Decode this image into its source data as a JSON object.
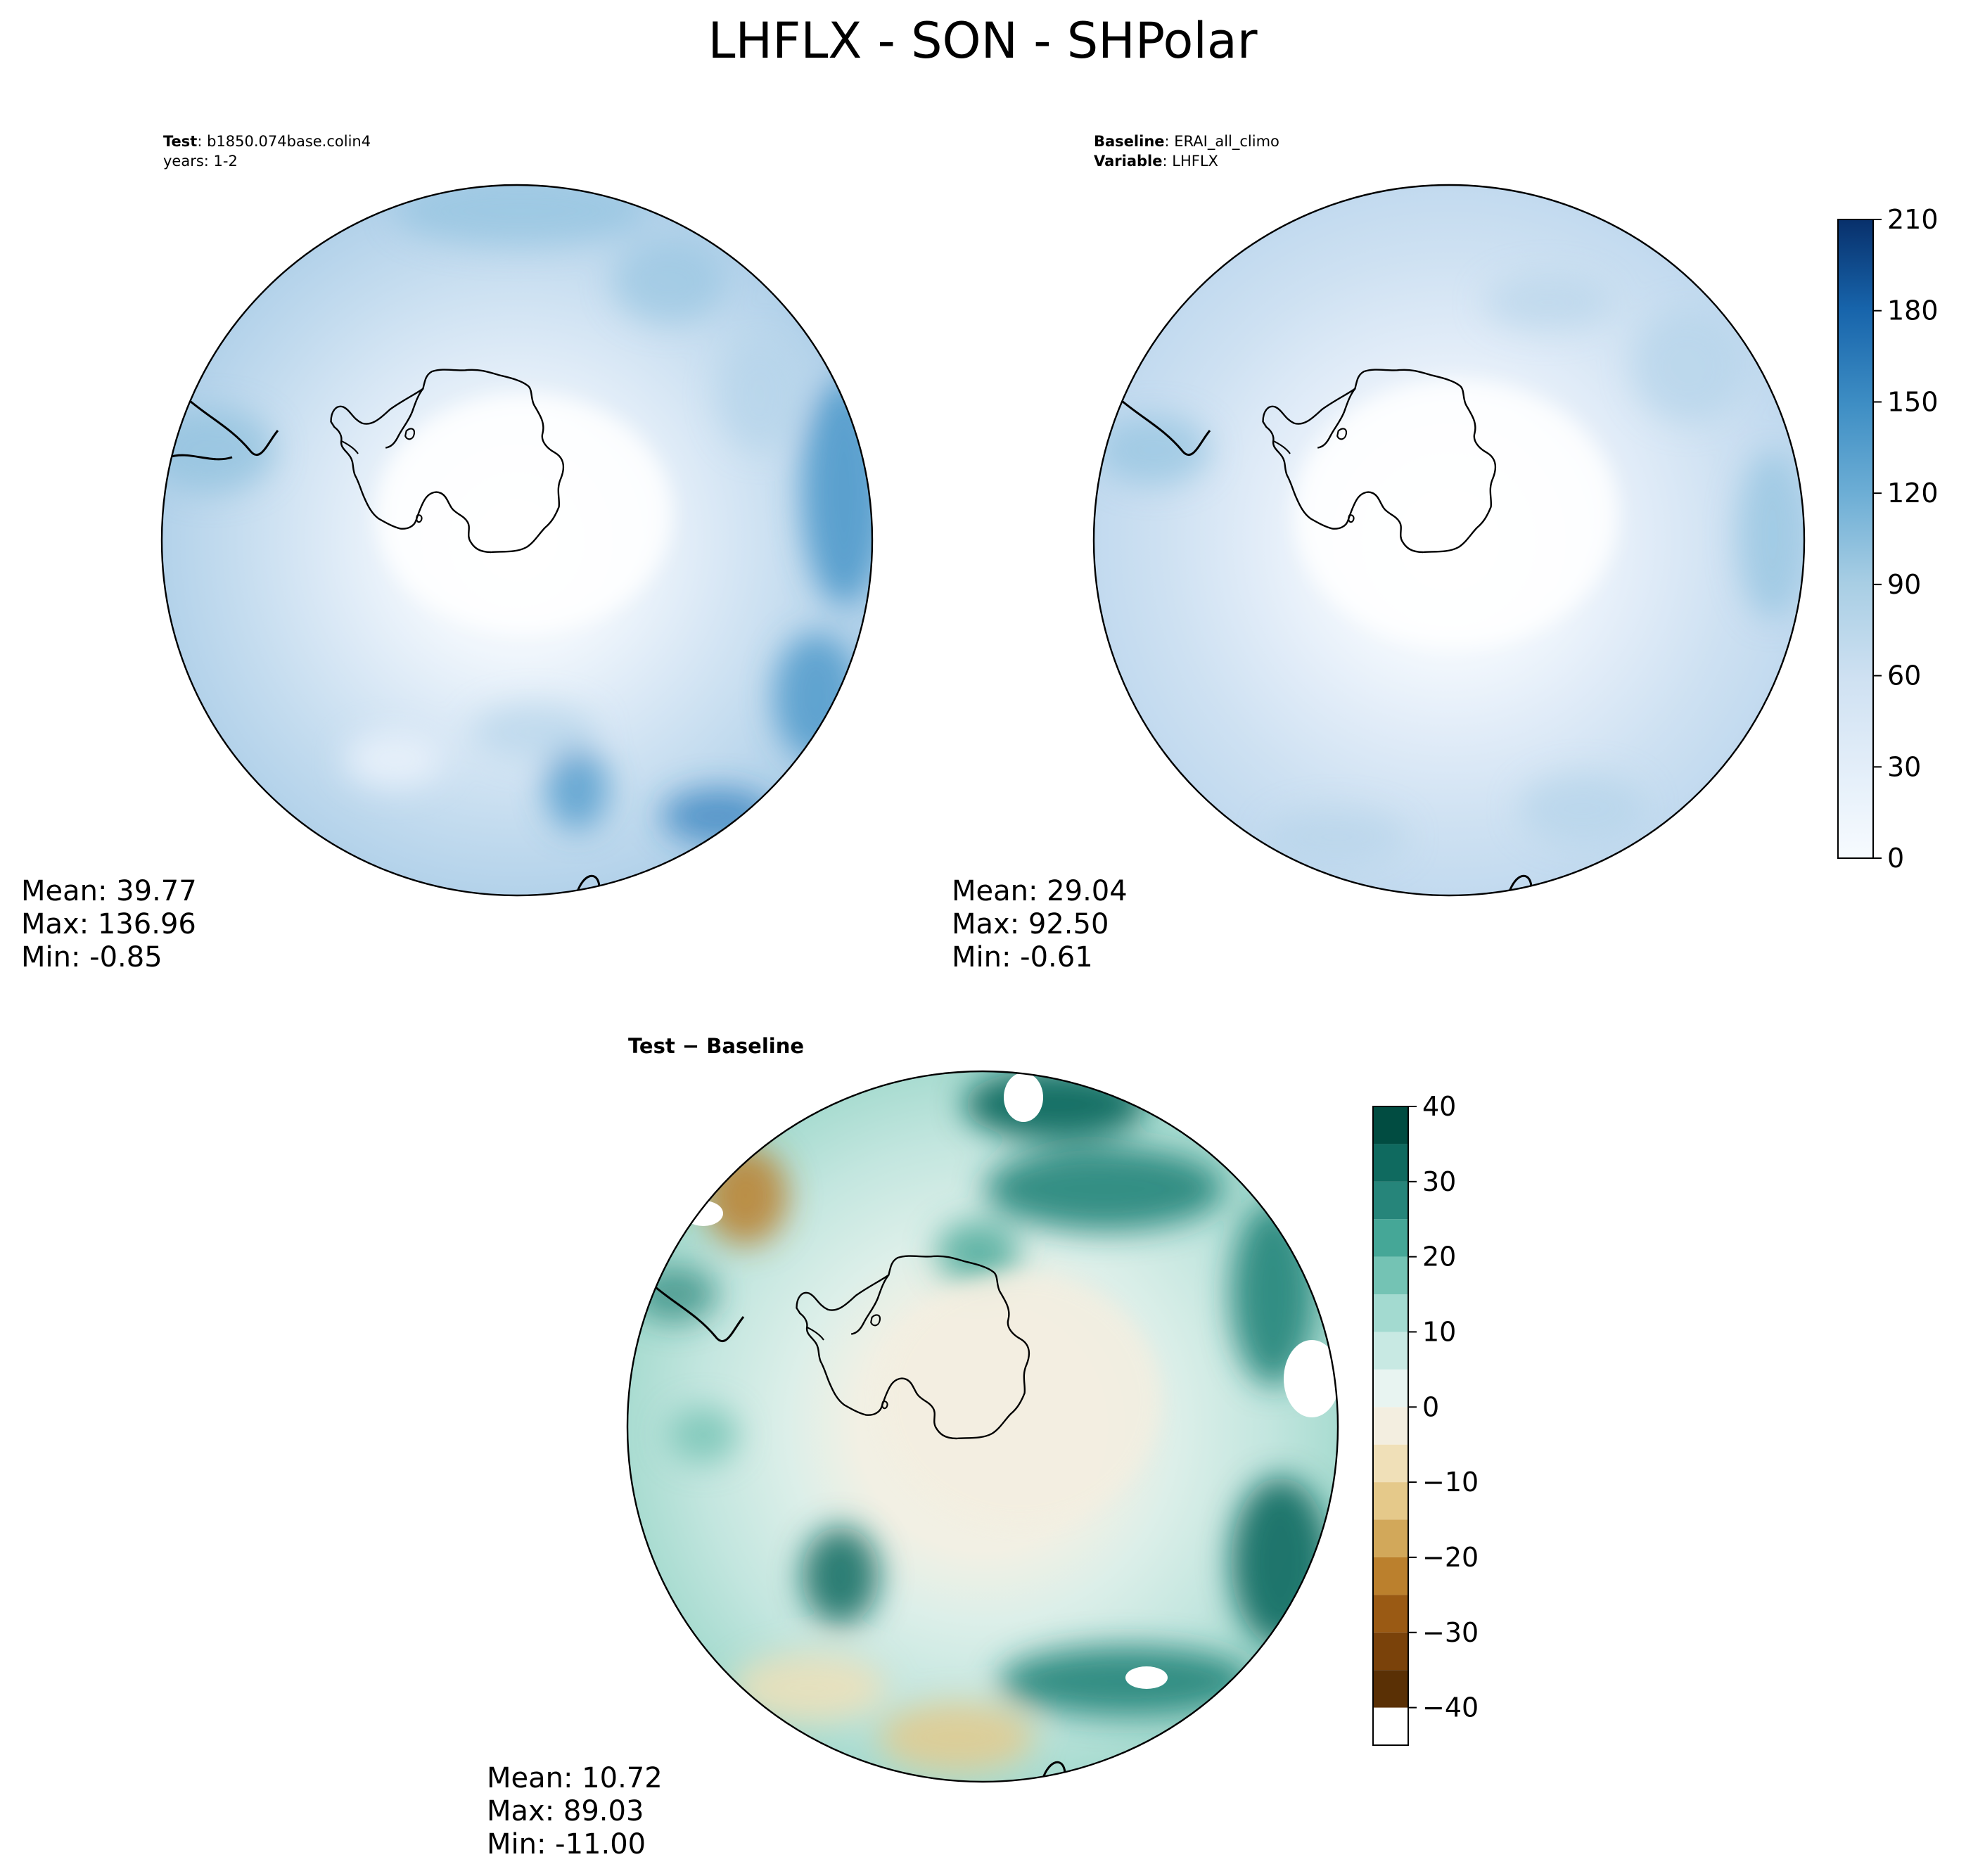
{
  "page_title": "LHFLX - SON - SHPolar",
  "panels": {
    "test": {
      "label_key": "Test",
      "label_value": "b1850.074base.colin4",
      "sub_label": "years: 1-2",
      "stats": {
        "mean": "Mean: 39.77",
        "max": "Max: 136.96",
        "min": "Min: -0.85"
      }
    },
    "baseline": {
      "label_key": "Baseline",
      "label_value": "ERAI_all_climo",
      "label2_key": "Variable",
      "label2_value": "LHFLX",
      "stats": {
        "mean": "Mean: 29.04",
        "max": "Max: 92.50",
        "min": "Min: -0.61"
      }
    },
    "diff": {
      "title": "Test − Baseline",
      "stats": {
        "mean": "Mean: 10.72",
        "max": "Max: 89.03",
        "min": "Min: -11.00"
      }
    }
  },
  "chart_data": [
    {
      "type": "heatmap",
      "panel": "test",
      "projection": "south polar stereographic",
      "region": "SHPolar",
      "variable": "LHFLX",
      "season": "SON",
      "mean": 39.77,
      "max": 136.96,
      "min": -0.85
    },
    {
      "type": "heatmap",
      "panel": "baseline",
      "projection": "south polar stereographic",
      "region": "SHPolar",
      "variable": "LHFLX",
      "season": "SON",
      "mean": 29.04,
      "max": 92.5,
      "min": -0.61,
      "colorbar": {
        "colormap": "Blues",
        "range": [
          0,
          210
        ],
        "ticks": [
          0,
          30,
          60,
          90,
          120,
          150,
          180,
          210
        ],
        "tick_labels": [
          "0",
          "30",
          "60",
          "90",
          "120",
          "150",
          "180",
          "210"
        ]
      }
    },
    {
      "type": "heatmap",
      "panel": "diff",
      "projection": "south polar stereographic",
      "region": "SHPolar",
      "mean": 10.72,
      "max": 89.03,
      "min": -11.0,
      "colorbar": {
        "colormap": "BrBG",
        "range": [
          -45,
          40
        ],
        "ticks": [
          -40,
          -30,
          -20,
          -10,
          0,
          10,
          20,
          30,
          40
        ],
        "tick_labels": [
          "−40",
          "−30",
          "−20",
          "−10",
          "0",
          "10",
          "20",
          "30",
          "40"
        ]
      }
    }
  ],
  "colors": {
    "blues": [
      "#f7fbff",
      "#e3eef9",
      "#cfe1f2",
      "#b5d4e9",
      "#93c3df",
      "#6daed5",
      "#4b97c9",
      "#2f7ebc",
      "#1864aa",
      "#0a4a90",
      "#08306b"
    ],
    "brbg_neg": [
      "#f3eee0",
      "#f0e0b8",
      "#e5c98a",
      "#d2a85a",
      "#bb802d",
      "#9a5a14",
      "#7a420a",
      "#5a3005"
    ],
    "brbg_pos": [
      "#e8f4f1",
      "#c8e9e3",
      "#a3dad0",
      "#74c3b4",
      "#45a797",
      "#26857a",
      "#0f6a5f",
      "#014c41"
    ]
  }
}
